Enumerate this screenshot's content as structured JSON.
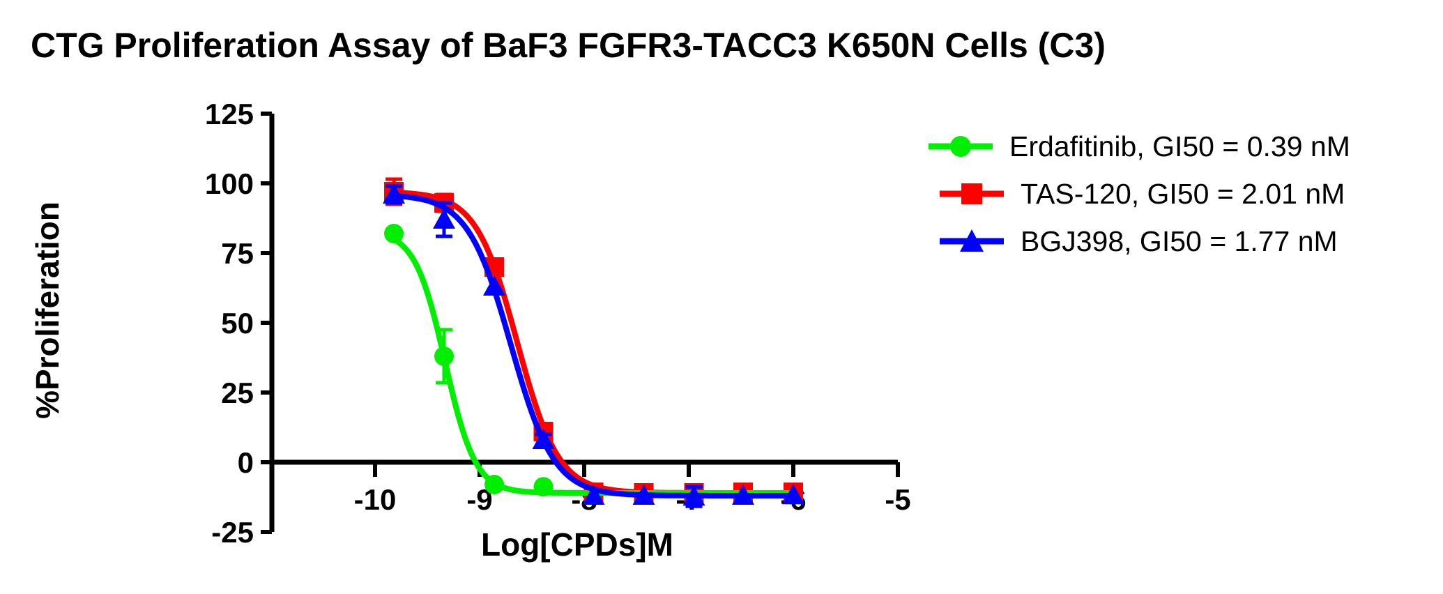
{
  "page": {
    "title": "CTG Proliferation Assay of BaF3 FGFR3-TACC3 K650N Cells (C3)"
  },
  "chart_data": {
    "type": "line",
    "title": "CTG Proliferation Assay of BaF3 FGFR3-TACC3 K650N Cells (C3)",
    "xlabel": "Log[CPDs]M",
    "ylabel": "%Proliferation",
    "xlim": [
      -11,
      -5
    ],
    "ylim": [
      -25,
      125
    ],
    "x_ticks": [
      -10,
      -9,
      -8,
      -7,
      -6,
      -5
    ],
    "y_ticks": [
      125,
      100,
      75,
      50,
      25,
      0,
      -25
    ],
    "grid": false,
    "legend_position": "right",
    "x_log_M": [
      -9.82,
      -9.34,
      -8.86,
      -8.39,
      -7.91,
      -7.43,
      -6.95,
      -6.48,
      -6.0
    ],
    "series": [
      {
        "name": "Erdafitinib",
        "legend_label": "Erdafitinib, GI50 = 0.39 nM",
        "gi50_nM": 0.39,
        "color": "#00EE00",
        "marker": "circle",
        "values": [
          82,
          38,
          -8,
          -8.8,
          -11,
          -11,
          -11,
          -11,
          -11
        ],
        "errors": [
          0,
          9.5,
          0,
          0,
          0,
          0,
          0,
          0,
          0
        ],
        "fit": {
          "top": 83,
          "bottom": -11,
          "logic50": -9.33,
          "hill": 3.0
        }
      },
      {
        "name": "TAS-120",
        "legend_label": "TAS-120, GI50 = 2.01 nM",
        "gi50_nM": 2.01,
        "color": "#FF0000",
        "marker": "square",
        "values": [
          97,
          93,
          70,
          11,
          -10.8,
          -11,
          -11,
          -10.8,
          -10.8
        ],
        "errors": [
          4.5,
          3,
          0,
          2,
          0,
          0,
          0,
          0,
          0
        ],
        "fit": {
          "top": 97,
          "bottom": -11,
          "logic50": -8.64,
          "hill": 2.2
        }
      },
      {
        "name": "BGJ398",
        "legend_label": "BGJ398, GI50 = 1.77 nM",
        "gi50_nM": 1.77,
        "color": "#0000FF",
        "marker": "triangle",
        "values": [
          96,
          87,
          63,
          8,
          -12,
          -12,
          -12.3,
          -12,
          -11.8
        ],
        "errors": [
          3,
          6,
          0,
          2,
          0,
          0,
          3.5,
          0,
          0
        ],
        "fit": {
          "top": 96,
          "bottom": -12,
          "logic50": -8.7,
          "hill": 2.1
        }
      }
    ]
  }
}
